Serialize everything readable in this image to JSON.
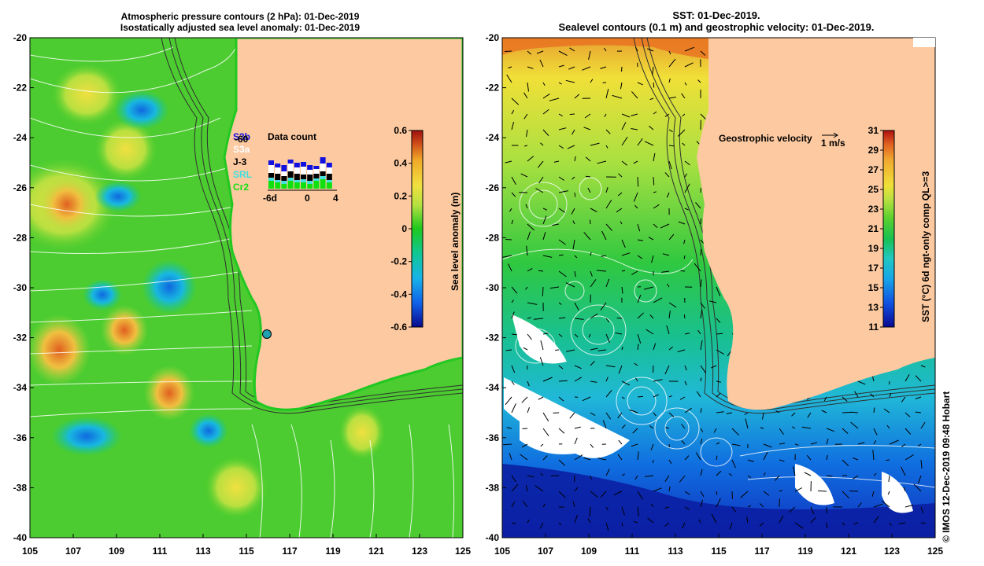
{
  "left_title": {
    "line1": "Atmospheric pressure contours (2 hPa): 01-Dec-2019",
    "line2": "Isostatically adjusted sea level anomaly: 01-Dec-2019"
  },
  "right_title": {
    "line1": "SST: 01-Dec-2019.",
    "line2": "Sealevel contours (0.1 m) and geostrophic velocity: 01-Dec-2019."
  },
  "axes": {
    "lat_ticks": [
      "-20",
      "-22",
      "-24",
      "-26",
      "-28",
      "-30",
      "-32",
      "-34",
      "-36",
      "-38",
      "-40"
    ],
    "lon_ticks": [
      "105",
      "107",
      "109",
      "111",
      "113",
      "115",
      "117",
      "119",
      "121",
      "123",
      "125"
    ]
  },
  "left_colorbar": {
    "label": "Sea level anomaly (m)",
    "ticks": [
      "0.6",
      "0.4",
      "0.2",
      "0",
      "-0.2",
      "-0.4",
      "-0.6"
    ]
  },
  "right_colorbar": {
    "label": "SST (°C) 6d ngt-only comp QL>=3",
    "ticks": [
      "31",
      "29",
      "27",
      "25",
      "23",
      "21",
      "19",
      "17",
      "15",
      "13",
      "11"
    ]
  },
  "data_count": {
    "title": "Data count",
    "legend": [
      "S3b",
      "S3a",
      "J-3",
      "SRL",
      "Cr2"
    ],
    "legend_overlap": "-60",
    "axis_ticks": [
      "-6d",
      "0",
      "4"
    ]
  },
  "geostrophic": {
    "label": "Geostrophic velocity",
    "scale": "1 m/s"
  },
  "credit": "© IMOS 12-Dec-2019 09:48 Hobart",
  "colors": {
    "land": "#fcc9a0",
    "sla_ramp": [
      "#0a0a8c",
      "#1060e8",
      "#18b4e8",
      "#10c890",
      "#1ec81e",
      "#58d030",
      "#b4e040",
      "#f0e040",
      "#f0a828",
      "#d05018",
      "#a01010"
    ],
    "sst_ramp": [
      "#080890",
      "#1050e0",
      "#18a8e8",
      "#20c8c0",
      "#18c050",
      "#58d030",
      "#b8e040",
      "#f0e038",
      "#f0a830",
      "#e06020",
      "#b01010"
    ],
    "data_count_colors": [
      "#1010e0",
      "#ffffff",
      "#000000",
      "#40e0e0",
      "#10e010"
    ]
  }
}
